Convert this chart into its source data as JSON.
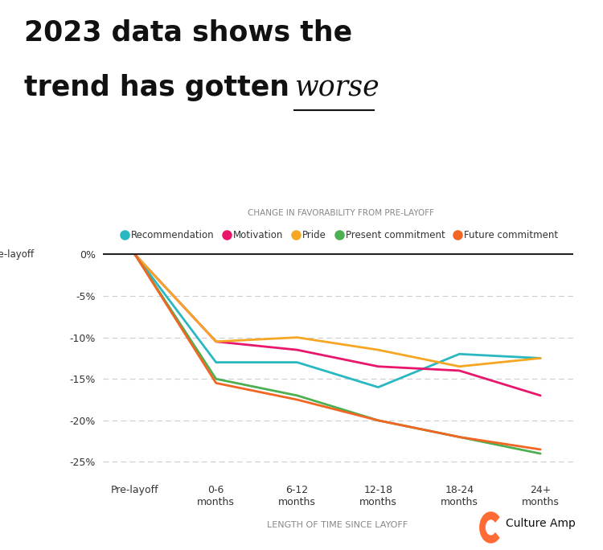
{
  "title_line1": "2023 data shows the",
  "title_line2_normal": "trend has gotten ",
  "title_line2_italic": "worse",
  "subtitle": "CHANGE IN FAVORABILITY FROM PRE-LAYOFF",
  "xlabel": "LENGTH OF TIME SINCE LAYOFF",
  "ylabel_label": "Pre-layoff",
  "x_labels": [
    "Pre-layoff",
    "0-6\nmonths",
    "6-12\nmonths",
    "12-18\nmonths",
    "18-24\nmonths",
    "24+\nmonths"
  ],
  "yticks": [
    0,
    -5,
    -10,
    -15,
    -20,
    -25
  ],
  "ytick_labels": [
    "0%",
    "-5%",
    "-10%",
    "-15%",
    "-20%",
    "-25%"
  ],
  "series": [
    {
      "name": "Recommendation",
      "color": "#29B8C1",
      "values": [
        0,
        -13.0,
        -13.0,
        -16.0,
        -12.0,
        -12.5
      ]
    },
    {
      "name": "Motivation",
      "color": "#E8176B",
      "values": [
        0,
        -10.5,
        -11.5,
        -13.5,
        -14.0,
        -17.0
      ]
    },
    {
      "name": "Pride",
      "color": "#F5A623",
      "values": [
        0,
        -10.5,
        -10.0,
        -11.5,
        -13.5,
        -12.5
      ]
    },
    {
      "name": "Present commitment",
      "color": "#4CAF50",
      "values": [
        0,
        -15.0,
        -17.0,
        -20.0,
        -22.0,
        -24.0
      ]
    },
    {
      "name": "Future commitment",
      "color": "#F26522",
      "values": [
        0,
        -15.5,
        -17.5,
        -20.0,
        -22.0,
        -23.5
      ]
    }
  ],
  "ylim": [
    -27,
    1.5
  ],
  "background_color": "#FFFFFF",
  "grid_color": "#CCCCCC",
  "zero_line_color": "#222222",
  "font_color": "#333333",
  "subtitle_color": "#888888",
  "culture_amp_text": "Culture Amp",
  "logo_color": "#FF6B35",
  "linewidth": 2.0
}
